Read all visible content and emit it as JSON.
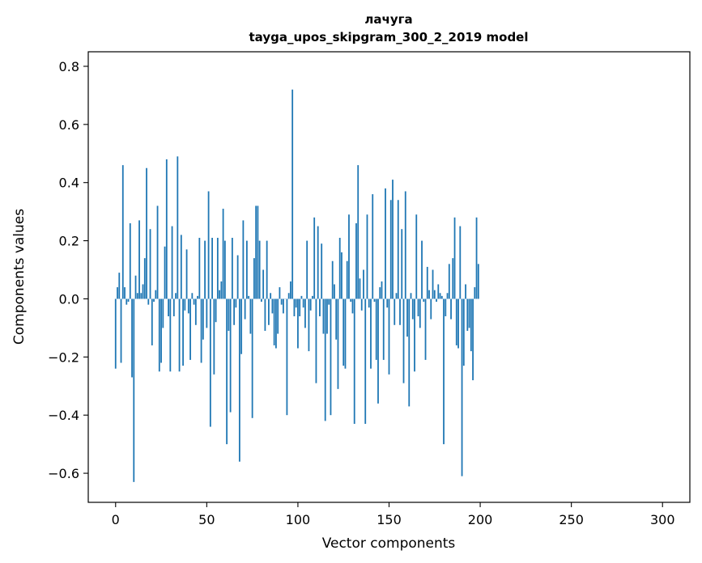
{
  "chart_data": {
    "type": "bar",
    "title": "лачуга",
    "subtitle": "tayga_upos_skipgram_300_2_2019 model",
    "xlabel": "Vector components",
    "ylabel": "Components values",
    "xlim": [
      -15,
      315
    ],
    "ylim": [
      -0.7,
      0.85
    ],
    "xticks": [
      0,
      50,
      100,
      150,
      200,
      250,
      300
    ],
    "yticks": [
      -0.6,
      -0.4,
      -0.2,
      0.0,
      0.2,
      0.4,
      0.6,
      0.8
    ],
    "ytick_labels": [
      "−0.6",
      "−0.4",
      "−0.2",
      "0.0",
      "0.2",
      "0.4",
      "0.6",
      "0.8"
    ],
    "bar_color": "#1f77b4",
    "grid": false,
    "legend": "none",
    "values": [
      -0.24,
      0.04,
      0.09,
      -0.22,
      0.46,
      0.04,
      -0.02,
      -0.01,
      0.26,
      -0.27,
      -0.63,
      0.08,
      0.02,
      0.27,
      0.02,
      0.05,
      0.14,
      0.45,
      -0.02,
      0.24,
      -0.16,
      -0.01,
      0.03,
      0.32,
      -0.25,
      -0.22,
      -0.1,
      0.18,
      0.48,
      -0.06,
      -0.25,
      0.25,
      -0.06,
      0.02,
      0.49,
      -0.25,
      0.22,
      -0.23,
      -0.04,
      0.17,
      -0.05,
      -0.21,
      0.02,
      -0.02,
      -0.09,
      0.01,
      0.21,
      -0.22,
      -0.14,
      0.2,
      -0.1,
      0.37,
      -0.44,
      0.21,
      -0.26,
      -0.08,
      0.21,
      0.03,
      0.06,
      0.31,
      0.2,
      -0.5,
      -0.11,
      -0.39,
      0.21,
      -0.09,
      -0.03,
      0.15,
      -0.56,
      -0.19,
      0.27,
      -0.07,
      0.2,
      0.01,
      -0.12,
      -0.41,
      0.14,
      0.32,
      0.32,
      0.2,
      -0.01,
      0.1,
      -0.11,
      0.2,
      -0.09,
      0.02,
      -0.05,
      -0.16,
      -0.17,
      -0.12,
      0.04,
      -0.02,
      -0.05,
      0.0,
      -0.4,
      0.02,
      0.06,
      0.72,
      -0.06,
      -0.03,
      -0.17,
      -0.06,
      0.01,
      -0.03,
      -0.1,
      0.2,
      -0.18,
      -0.04,
      0.01,
      0.28,
      -0.29,
      0.25,
      -0.06,
      0.19,
      -0.12,
      -0.42,
      -0.12,
      -0.02,
      -0.4,
      0.13,
      0.05,
      -0.14,
      -0.31,
      0.21,
      0.16,
      -0.23,
      -0.24,
      0.13,
      0.29,
      -0.01,
      -0.05,
      -0.43,
      0.26,
      0.46,
      0.07,
      -0.04,
      0.1,
      -0.43,
      0.29,
      -0.03,
      -0.24,
      0.36,
      -0.01,
      -0.21,
      -0.36,
      0.04,
      0.06,
      -0.21,
      0.38,
      -0.03,
      -0.26,
      0.34,
      0.41,
      -0.09,
      0.02,
      0.34,
      -0.09,
      0.24,
      -0.29,
      0.37,
      -0.13,
      -0.37,
      0.02,
      -0.07,
      -0.25,
      0.29,
      -0.06,
      -0.1,
      0.2,
      -0.01,
      -0.21,
      0.11,
      0.03,
      -0.07,
      0.1,
      0.03,
      -0.01,
      0.05,
      0.02,
      0.01,
      -0.5,
      -0.06,
      0.02,
      0.12,
      -0.07,
      0.14,
      0.28,
      -0.16,
      -0.17,
      0.25,
      -0.61,
      -0.23,
      0.05,
      -0.11,
      -0.1,
      -0.18,
      -0.28,
      0.04,
      0.28,
      0.12
    ]
  }
}
